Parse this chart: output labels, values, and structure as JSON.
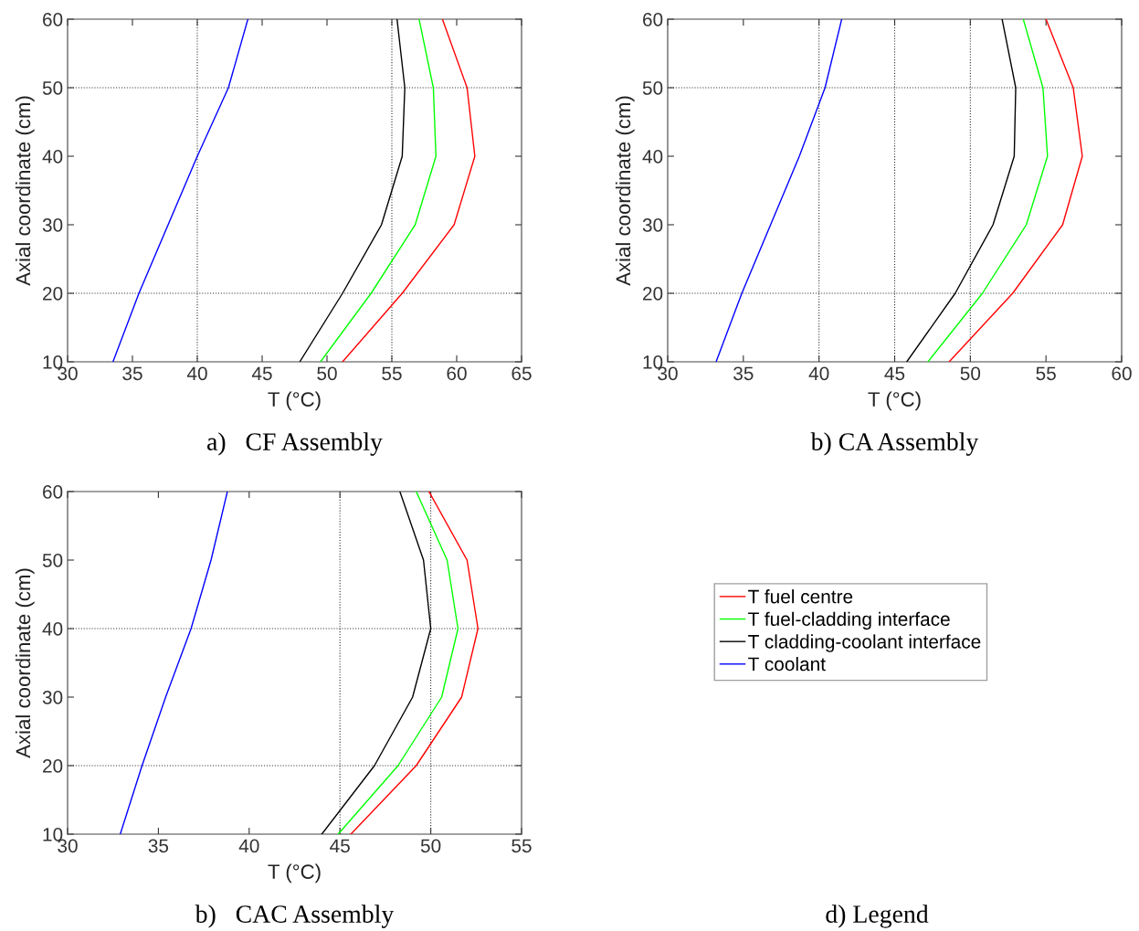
{
  "chart_data": [
    {
      "type": "line",
      "xlabel": "T (°C)",
      "ylabel": "Axial coordinate (cm)",
      "xlim": [
        30,
        65
      ],
      "xticks": [
        30,
        35,
        40,
        45,
        50,
        55,
        60,
        65
      ],
      "ylim": [
        10,
        60
      ],
      "yticks": [
        10,
        20,
        30,
        40,
        50,
        60
      ],
      "grid": false,
      "legend": false,
      "line_style": "solid",
      "ref_lines": [
        {
          "axis": "x",
          "value": 40,
          "line_style": "dotted"
        },
        {
          "axis": "x",
          "value": 55,
          "line_style": "dotted"
        },
        {
          "axis": "y",
          "value": 20,
          "line_style": "dotted"
        },
        {
          "axis": "y",
          "value": 50,
          "line_style": "dotted"
        }
      ],
      "series": [
        {
          "color": "#ff0000",
          "x": [
            51.2,
            55.8,
            59.8,
            61.4,
            60.8,
            58.9
          ],
          "values": [
            10,
            20,
            30,
            40,
            50,
            60
          ]
        },
        {
          "color": "#00ff00",
          "x": [
            49.5,
            53.4,
            56.8,
            58.4,
            58.2,
            57.1
          ],
          "values": [
            10,
            20,
            30,
            40,
            50,
            60
          ]
        },
        {
          "color": "#000000",
          "x": [
            47.9,
            51.2,
            54.2,
            55.8,
            56.0,
            55.4
          ],
          "values": [
            10,
            20,
            30,
            40,
            50,
            60
          ]
        },
        {
          "color": "#0000ff",
          "x": [
            33.5,
            35.5,
            40.0,
            42.4,
            43.9
          ],
          "values": [
            10,
            20,
            40,
            50,
            60
          ]
        }
      ],
      "annotations": [
        "a)   CF Assembly"
      ]
    },
    {
      "type": "line",
      "xlabel": "T (°C)",
      "ylabel": "Axial coordinate (cm)",
      "xlim": [
        30,
        60
      ],
      "xticks": [
        30,
        35,
        40,
        45,
        50,
        55,
        60
      ],
      "ylim": [
        10,
        60
      ],
      "yticks": [
        10,
        20,
        30,
        40,
        50,
        60
      ],
      "grid": false,
      "legend": false,
      "line_style": "solid",
      "ref_lines": [
        {
          "axis": "x",
          "value": 40,
          "line_style": "dotted"
        },
        {
          "axis": "x",
          "value": 45,
          "line_style": "dotted"
        },
        {
          "axis": "x",
          "value": 50,
          "line_style": "dotted"
        },
        {
          "axis": "y",
          "value": 20,
          "line_style": "dotted"
        },
        {
          "axis": "y",
          "value": 50,
          "line_style": "dotted"
        }
      ],
      "series": [
        {
          "color": "#ff0000",
          "x": [
            48.6,
            52.8,
            56.1,
            57.4,
            56.8,
            55.0
          ],
          "values": [
            10,
            20,
            30,
            40,
            50,
            60
          ]
        },
        {
          "color": "#00ff00",
          "x": [
            47.2,
            50.8,
            53.7,
            55.1,
            54.8,
            53.5
          ],
          "values": [
            10,
            20,
            30,
            40,
            50,
            60
          ]
        },
        {
          "color": "#000000",
          "x": [
            45.8,
            49.0,
            51.5,
            52.9,
            53.0,
            52.1
          ],
          "values": [
            10,
            20,
            30,
            40,
            50,
            60
          ]
        },
        {
          "color": "#0000ff",
          "x": [
            33.2,
            34.9,
            36.8,
            38.7,
            40.4,
            41.5
          ],
          "values": [
            10,
            20,
            30,
            40,
            50,
            60
          ]
        }
      ],
      "annotations": [
        "b) CA Assembly"
      ]
    },
    {
      "type": "line",
      "xlabel": "T (°C)",
      "ylabel": "Axial coordinate (cm)",
      "xlim": [
        30,
        55
      ],
      "xticks": [
        30,
        35,
        40,
        45,
        50,
        55
      ],
      "ylim": [
        10,
        60
      ],
      "yticks": [
        10,
        20,
        30,
        40,
        50,
        60
      ],
      "grid": false,
      "legend": "right",
      "line_style": "solid",
      "ref_lines": [
        {
          "axis": "x",
          "value": 45,
          "line_style": "dotted"
        },
        {
          "axis": "x",
          "value": 50,
          "line_style": "dotted"
        },
        {
          "axis": "y",
          "value": 20,
          "line_style": "dotted"
        },
        {
          "axis": "y",
          "value": 40,
          "line_style": "dotted"
        }
      ],
      "series": [
        {
          "name": "T fuel centre",
          "color": "#ff0000",
          "x": [
            45.6,
            49.2,
            51.7,
            52.6,
            52.0,
            49.9
          ],
          "values": [
            10,
            20,
            30,
            40,
            50,
            60
          ]
        },
        {
          "name": "T fuel-cladding interface",
          "color": "#00ff00",
          "x": [
            44.9,
            48.2,
            50.6,
            51.5,
            50.9,
            49.2
          ],
          "values": [
            10,
            20,
            30,
            40,
            50,
            60
          ]
        },
        {
          "name": "T cladding-coolant interface",
          "color": "#000000",
          "x": [
            44.0,
            46.9,
            49.0,
            50.0,
            49.6,
            48.3
          ],
          "values": [
            10,
            20,
            30,
            40,
            50,
            60
          ]
        },
        {
          "name": "T coolant",
          "color": "#0000ff",
          "x": [
            32.9,
            34.1,
            35.4,
            36.8,
            37.9,
            38.8
          ],
          "values": [
            10,
            20,
            30,
            40,
            50,
            60
          ]
        }
      ],
      "annotations": [
        "b)   CAC Assembly",
        "d) Legend"
      ]
    }
  ]
}
